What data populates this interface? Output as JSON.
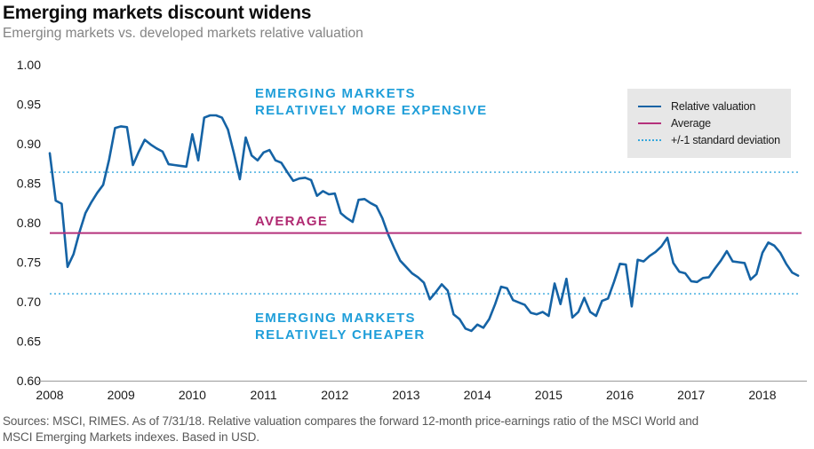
{
  "header": {
    "title": "Emerging markets discount widens",
    "subtitle": "Emerging markets vs. developed markets relative valuation"
  },
  "legend": {
    "items": [
      {
        "label": "Relative valuation",
        "color": "#1563a5",
        "style": "solid"
      },
      {
        "label": "Average",
        "color": "#b5327c",
        "style": "solid"
      },
      {
        "label": "+/-1 standard deviation",
        "color": "#35a7dd",
        "style": "dotted"
      }
    ]
  },
  "annotations": {
    "expensive_line1": "EMERGING MARKETS",
    "expensive_line2": "RELATIVELY MORE EXPENSIVE",
    "average_label": "AVERAGE",
    "cheaper_line1": "EMERGING MARKETS",
    "cheaper_line2": "RELATIVELY CHEAPER"
  },
  "footer": {
    "source_line1": "Sources: MSCI, RIMES. As of 7/31/18. Relative valuation compares the forward 12-month price-earnings ratio of the MSCI World and",
    "source_line2": "MSCI Emerging Markets indexes. Based in USD."
  },
  "chart_data": {
    "type": "line",
    "title": "Emerging markets discount widens",
    "xlabel": "",
    "ylabel": "",
    "ylim": [
      0.6,
      1.0
    ],
    "grid": false,
    "legend_position": "top-right",
    "x_tick_labels": [
      "2008",
      "2009",
      "2010",
      "2011",
      "2012",
      "2013",
      "2014",
      "2015",
      "2016",
      "2017",
      "2018"
    ],
    "y_tick_labels": [
      "1.00",
      "0.95",
      "0.90",
      "0.85",
      "0.80",
      "0.75",
      "0.70",
      "0.65",
      "0.60"
    ],
    "reference_lines": {
      "average": {
        "label": "Average",
        "value": 0.787,
        "color": "#b5327c",
        "style": "solid"
      },
      "upper_std": {
        "label": "+1 standard deviation",
        "value": 0.864,
        "color": "#35a7dd",
        "style": "dotted"
      },
      "lower_std": {
        "label": "-1 standard deviation",
        "value": 0.71,
        "color": "#35a7dd",
        "style": "dotted"
      }
    },
    "series": [
      {
        "name": "Relative valuation",
        "frequency": "monthly",
        "start": "2008-01",
        "end": "2018-07",
        "color": "#1563a5",
        "values": [
          0.888,
          0.828,
          0.824,
          0.744,
          0.76,
          0.788,
          0.812,
          0.826,
          0.838,
          0.848,
          0.88,
          0.92,
          0.922,
          0.921,
          0.873,
          0.89,
          0.905,
          0.899,
          0.894,
          0.89,
          0.874,
          0.873,
          0.872,
          0.871,
          0.912,
          0.879,
          0.933,
          0.936,
          0.936,
          0.933,
          0.918,
          0.888,
          0.855,
          0.908,
          0.885,
          0.879,
          0.889,
          0.892,
          0.879,
          0.876,
          0.864,
          0.853,
          0.856,
          0.857,
          0.854,
          0.834,
          0.84,
          0.836,
          0.837,
          0.812,
          0.806,
          0.801,
          0.829,
          0.83,
          0.825,
          0.821,
          0.806,
          0.785,
          0.768,
          0.752,
          0.744,
          0.736,
          0.731,
          0.724,
          0.703,
          0.712,
          0.722,
          0.714,
          0.684,
          0.678,
          0.666,
          0.663,
          0.671,
          0.667,
          0.678,
          0.697,
          0.719,
          0.717,
          0.702,
          0.699,
          0.696,
          0.686,
          0.684,
          0.687,
          0.682,
          0.723,
          0.697,
          0.729,
          0.68,
          0.687,
          0.705,
          0.687,
          0.682,
          0.701,
          0.704,
          0.725,
          0.748,
          0.747,
          0.694,
          0.753,
          0.751,
          0.758,
          0.763,
          0.77,
          0.781,
          0.749,
          0.738,
          0.736,
          0.726,
          0.725,
          0.73,
          0.731,
          0.742,
          0.752,
          0.764,
          0.751,
          0.75,
          0.749,
          0.728,
          0.735,
          0.762,
          0.775,
          0.771,
          0.762,
          0.748,
          0.737,
          0.733
        ]
      }
    ]
  }
}
